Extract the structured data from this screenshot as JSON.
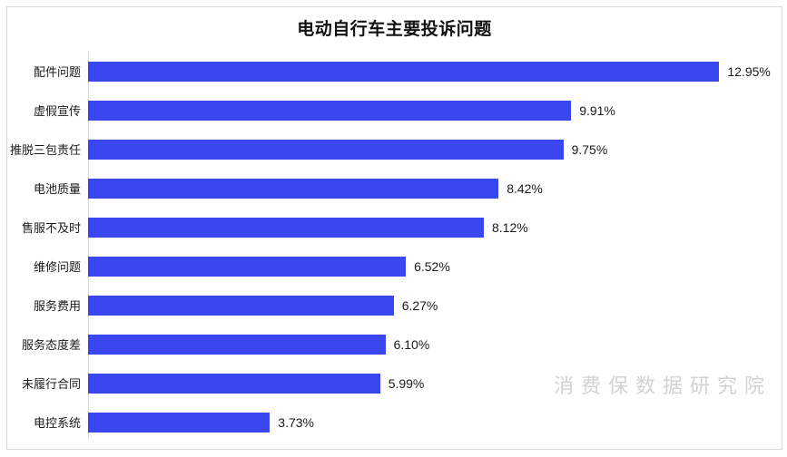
{
  "title": "电动自行车主要投诉问题",
  "watermark": "消费保数据研究院",
  "colors": {
    "bar": "#3a46f0",
    "axis_line": "#d9d9d9",
    "frame_border": "#d9d9d9",
    "title_text": "#111111",
    "label_text": "#1a1a1a",
    "value_text": "#1a1a1a",
    "watermark_text": "#d2d2d2",
    "background": "#ffffff"
  },
  "chart_data": {
    "type": "bar",
    "orientation": "horizontal",
    "title": "电动自行车主要投诉问题",
    "categories": [
      "配件问题",
      "虚假宣传",
      "推脱三包责任",
      "电池质量",
      "售服不及时",
      "维修问题",
      "服务费用",
      "服务态度差",
      "未履行合同",
      "电控系统"
    ],
    "values": [
      12.95,
      9.91,
      9.75,
      8.42,
      8.12,
      6.52,
      6.27,
      6.1,
      5.99,
      3.73
    ],
    "value_labels": [
      "12.95%",
      "9.91%",
      "9.75%",
      "8.42%",
      "8.12%",
      "6.52%",
      "6.27%",
      "6.10%",
      "5.99%",
      "3.73%"
    ],
    "xlabel": "",
    "ylabel": "",
    "xlim": [
      0,
      14.15
    ],
    "grid": false,
    "legend": false,
    "annotations": [
      "消费保数据研究院"
    ]
  }
}
